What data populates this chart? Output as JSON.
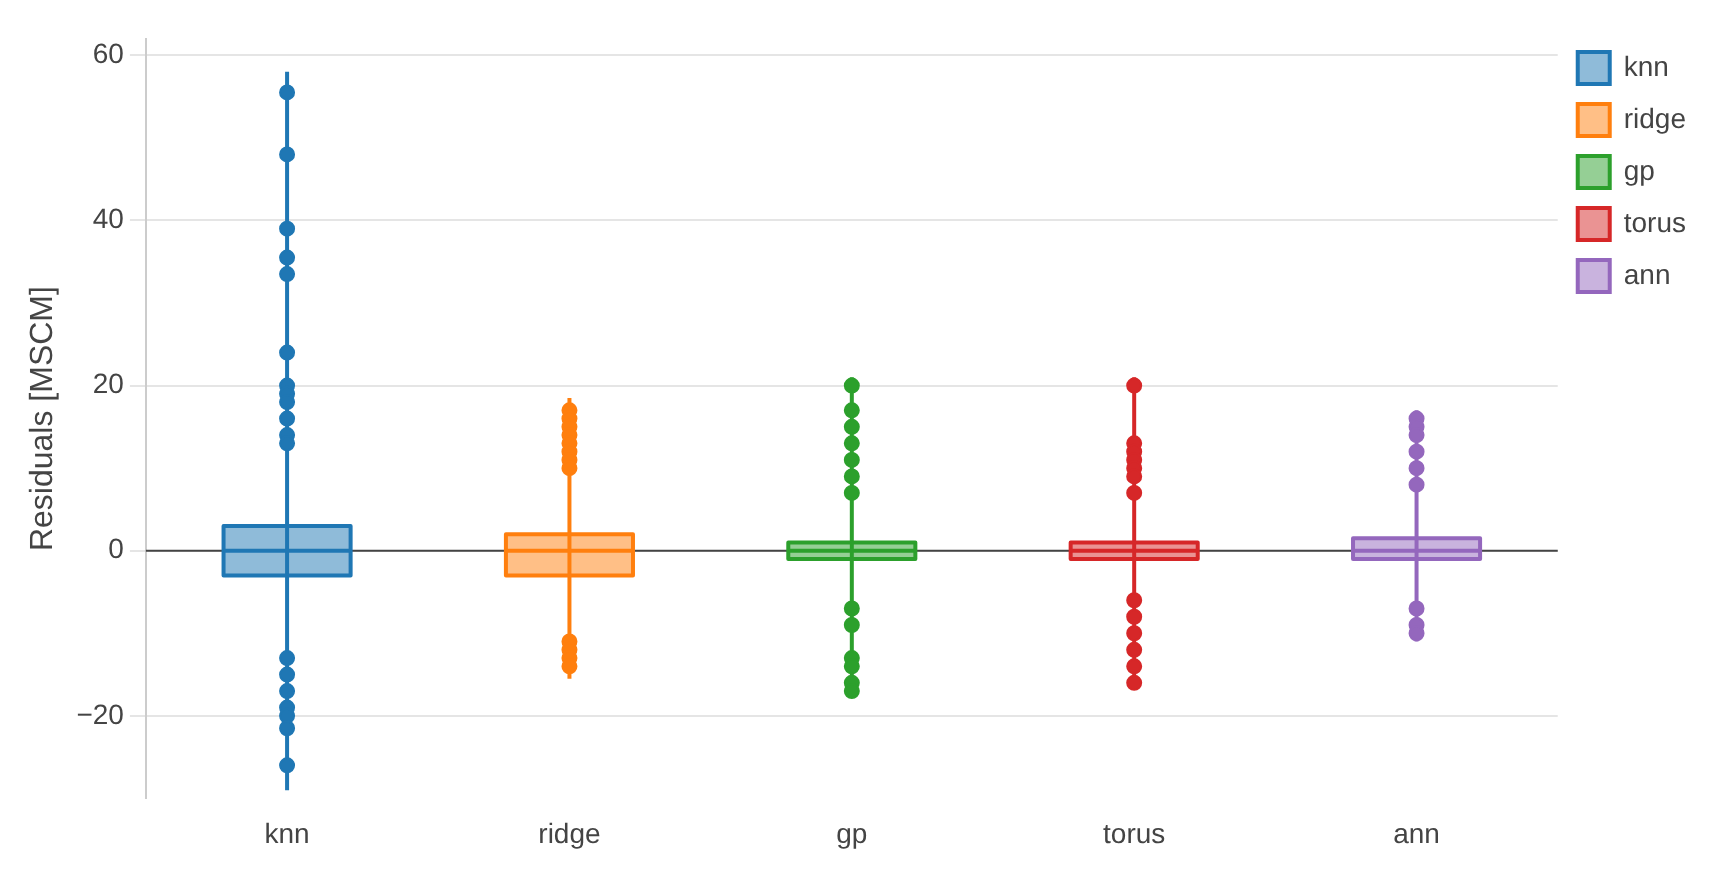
{
  "chart_data": {
    "type": "box",
    "ylabel": "Residuals [MSCM]",
    "categories": [
      "knn",
      "ridge",
      "gp",
      "torus",
      "ann"
    ],
    "series": [
      {
        "name": "knn",
        "color": "#1f77b4",
        "boxes": [
          {
            "low": -29,
            "q1": -3,
            "median": 0,
            "q3": 3,
            "high": 58,
            "outliers": [
              55.5,
              48,
              39,
              35.5,
              33.5,
              24,
              20,
              19,
              18,
              16,
              14,
              13,
              -13,
              -15,
              -17,
              -19,
              -20,
              -21.5,
              -26
            ]
          },
          null,
          null,
          null,
          null
        ]
      },
      {
        "name": "ridge",
        "color": "#ff7f0e",
        "boxes": [
          null,
          {
            "low": -15.5,
            "q1": -3,
            "median": 0,
            "q3": 2,
            "high": 18.5,
            "outliers": [
              17,
              16,
              15,
              14,
              13,
              12,
              11,
              10,
              -11,
              -12,
              -13,
              -14
            ]
          },
          null,
          null,
          null
        ]
      },
      {
        "name": "gp",
        "color": "#2ca02c",
        "boxes": [
          null,
          null,
          {
            "low": -17.5,
            "q1": -1,
            "median": 0,
            "q3": 1,
            "high": 21,
            "outliers": [
              20,
              17,
              15,
              13,
              11,
              9,
              7,
              -7,
              -9,
              -13,
              -14,
              -16,
              -17
            ]
          },
          null,
          null
        ]
      },
      {
        "name": "torus",
        "color": "#d62728",
        "boxes": [
          null,
          null,
          null,
          {
            "low": -16.5,
            "q1": -1,
            "median": 0,
            "q3": 1,
            "high": 21,
            "outliers": [
              20,
              13,
              12,
              11,
              10,
              9,
              7,
              -6,
              -8,
              -10,
              -12,
              -14,
              -16
            ]
          },
          null
        ]
      },
      {
        "name": "ann",
        "color": "#9467bd",
        "boxes": [
          null,
          null,
          null,
          null,
          {
            "low": -11,
            "q1": -1,
            "median": 0,
            "q3": 1.5,
            "high": 17,
            "outliers": [
              16,
              15,
              14,
              12,
              10,
              8,
              -7,
              -9,
              -10
            ]
          }
        ]
      }
    ],
    "ylim": [
      -30,
      62
    ],
    "yticks": [
      -20,
      0,
      20,
      40,
      60
    ],
    "grid": "y",
    "legend": "top right",
    "ref_lines": [
      {
        "axis": "y",
        "value": 0,
        "color": "#444444"
      }
    ]
  }
}
